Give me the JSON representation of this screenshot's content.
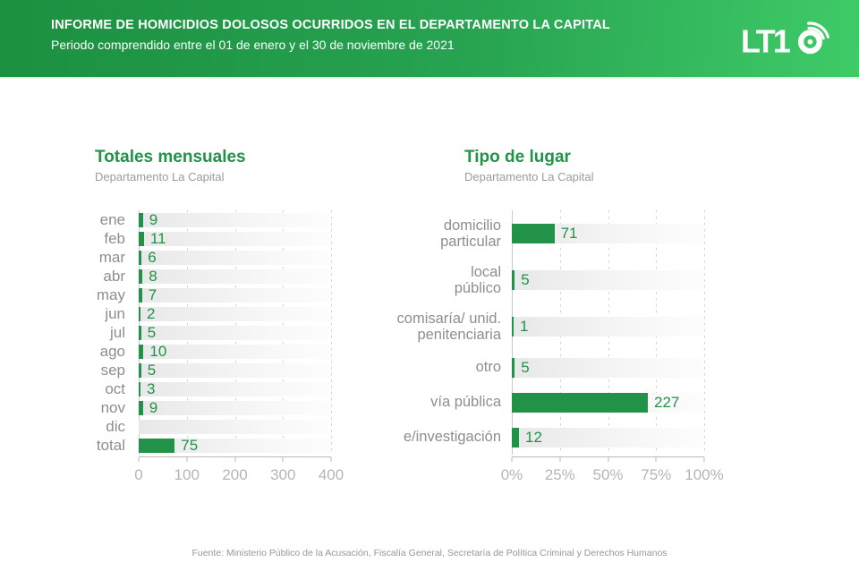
{
  "colors": {
    "header_gradient_from": "#1b9040",
    "header_gradient_to": "#3fcb68",
    "accent_green": "#219247",
    "bar_green": "#219247",
    "category_label_gray": "#8e8e8e",
    "axis_label_gray": "#b5b5b5",
    "track_gray": "#e8e8e8"
  },
  "header": {
    "title": "INFORME DE HOMICIDIOS DOLOSOS OCURRIDOS EN EL DEPARTAMENTO LA CAPITAL",
    "subtitle": "Periodo comprendido entre el 01 de enero y el 30 de noviembre de 2021",
    "logo": "LT10",
    "logo_part": "LT1"
  },
  "chart_data": [
    {
      "type": "bar",
      "orientation": "horizontal",
      "title": "Totales mensuales",
      "subtitle": "Departamento La Capital",
      "categories": [
        "ene",
        "feb",
        "mar",
        "abr",
        "may",
        "jun",
        "jul",
        "ago",
        "sep",
        "oct",
        "nov",
        "dic",
        "total"
      ],
      "values": [
        9,
        11,
        6,
        8,
        7,
        2,
        5,
        10,
        5,
        3,
        9,
        null,
        75
      ],
      "xlim": [
        0,
        400
      ],
      "xticks": [
        "0",
        "100",
        "200",
        "300",
        "400"
      ],
      "grid": "dashed-vertical",
      "legend": "none",
      "bar_color": "#219247"
    },
    {
      "type": "bar",
      "orientation": "horizontal",
      "title": "Tipo de lugar",
      "subtitle": "Departamento La Capital",
      "categories": [
        "domicilio particular",
        "local público",
        "comisaría/ unid. penitenciaria",
        "otro",
        "vía pública",
        "e/investigación"
      ],
      "label_lines": [
        [
          "domicilio",
          "particular"
        ],
        [
          "local",
          "público"
        ],
        [
          "comisaría/ unid.",
          "penitenciaria"
        ],
        [
          "otro"
        ],
        [
          "vía pública"
        ],
        [
          "e/investigación"
        ]
      ],
      "values": [
        71,
        5,
        1,
        5,
        227,
        12
      ],
      "xlim_percent": [
        0,
        100
      ],
      "xticks": [
        "0%",
        "25%",
        "50%",
        "75%",
        "100%"
      ],
      "bar_length_rule": "value as share of total (sum = 321) on 0-100% axis",
      "grid": "dashed-vertical",
      "legend": "none",
      "bar_color": "#219247"
    }
  ],
  "footer": {
    "source": "Fuente: Ministerio Público de la Acusación, Fiscalía General, Secretaría de Política Criminal y Derechos Humanos"
  }
}
